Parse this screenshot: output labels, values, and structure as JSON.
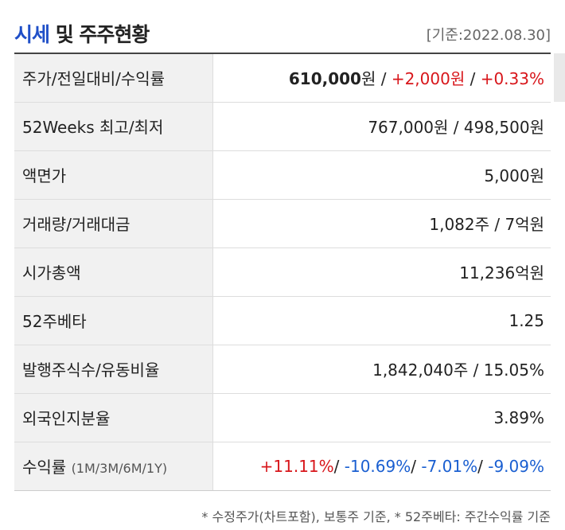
{
  "header": {
    "title_accent": "시세",
    "title_rest": " 및 주주현황",
    "base_date": "[기준:2022.08.30]"
  },
  "rows": [
    {
      "label": "주가/전일대비/수익률",
      "price": "610,000",
      "price_unit": "원",
      "sep1": " / ",
      "change": "+2,000원",
      "sep2": " / ",
      "rate": "+0.33%"
    },
    {
      "label": "52Weeks 최고/최저",
      "value": "767,000원 / 498,500원"
    },
    {
      "label": "액면가",
      "value": "5,000원"
    },
    {
      "label": "거래량/거래대금",
      "value": "1,082주 / 7억원"
    },
    {
      "label": "시가총액",
      "value": "11,236억원"
    },
    {
      "label": "52주베타",
      "value": "1.25"
    },
    {
      "label": "발행주식수/유동비율",
      "value": "1,842,040주 / 15.05%"
    },
    {
      "label": "외국인지분율",
      "value": "3.89%"
    },
    {
      "label": "수익률",
      "sublabel": "(1M/3M/6M/1Y)",
      "r1m": "+11.11%",
      "s1": "/ ",
      "r3m": "-10.69%",
      "s2": "/ ",
      "r6m": "-7.01%",
      "s3": "/ ",
      "r1y": "-9.09%"
    }
  ],
  "footnote": "* 수정주가(차트포함), 보통주 기준, * 52주베타: 주간수익률 기준",
  "colors": {
    "accent": "#1f4fc8",
    "up": "#d8161b",
    "down": "#1a5fd1"
  }
}
